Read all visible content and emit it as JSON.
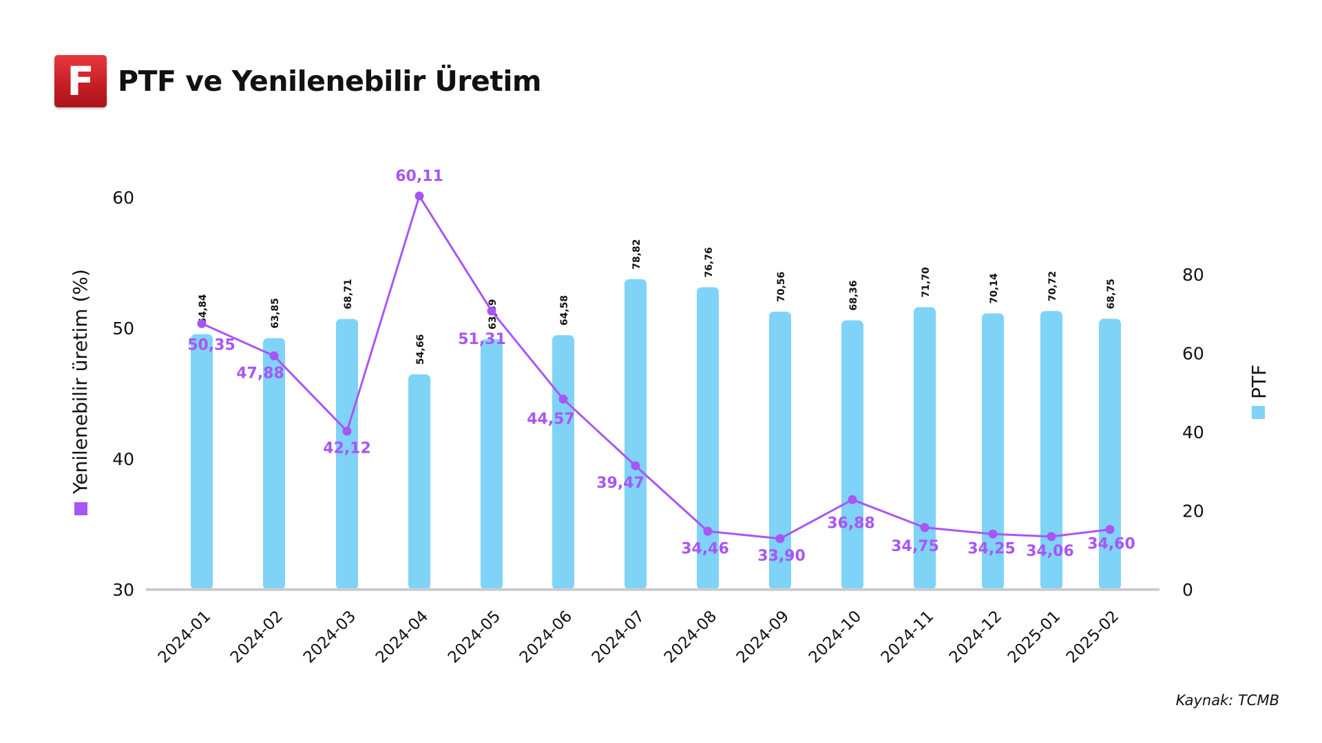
{
  "header": {
    "logo_letter": "F",
    "title": "PTF ve Yenilenebilir Üretim"
  },
  "source": "Kaynak: TCMB",
  "colors": {
    "bar": "#7fd3f7",
    "line": "#a855f7",
    "axis": "#cccccc",
    "text": "#111111"
  },
  "chart_data": {
    "type": "bar+line",
    "title": "PTF ve Yenilenebilir Üretim",
    "categories": [
      "2024-01",
      "2024-02",
      "2024-03",
      "2024-04",
      "2024-05",
      "2024-06",
      "2024-07",
      "2024-08",
      "2024-09",
      "2024-10",
      "2024-11",
      "2024-12",
      "2025-01",
      "2025-02"
    ],
    "series": [
      {
        "name": "Yenilenebilir üretim (%)",
        "kind": "line",
        "axis": "left",
        "values": [
          50.35,
          47.88,
          42.12,
          60.11,
          51.31,
          44.57,
          39.47,
          34.46,
          33.9,
          36.88,
          34.75,
          34.25,
          34.06,
          34.6
        ],
        "labels": [
          "50,35",
          "47,88",
          "42,12",
          "60,11",
          "51,31",
          "44,57",
          "39,47",
          "34,46",
          "33,90",
          "36,88",
          "34,75",
          "34,25",
          "34,06",
          "34,60"
        ]
      },
      {
        "name": "PTF",
        "kind": "bar",
        "axis": "right",
        "values": [
          64.84,
          63.85,
          68.71,
          54.66,
          63.59,
          64.58,
          78.82,
          76.76,
          70.56,
          68.36,
          71.7,
          70.14,
          70.72,
          68.75
        ],
        "labels": [
          "64,84",
          "63,85",
          "68,71",
          "54,66",
          "63,59",
          "64,58",
          "78,82",
          "76,76",
          "70,56",
          "68,36",
          "71,70",
          "70,14",
          "70,72",
          "68,75"
        ]
      }
    ],
    "y_left": {
      "label": "Yenilenebilir üretim (%)",
      "min": 30,
      "max": 60,
      "ticks": [
        30,
        40,
        50,
        60
      ]
    },
    "y_right": {
      "label": "PTF",
      "min": 0,
      "max": 80,
      "ticks": [
        0,
        20,
        40,
        60,
        80
      ]
    },
    "grid": false,
    "legend": "axis-labels"
  }
}
